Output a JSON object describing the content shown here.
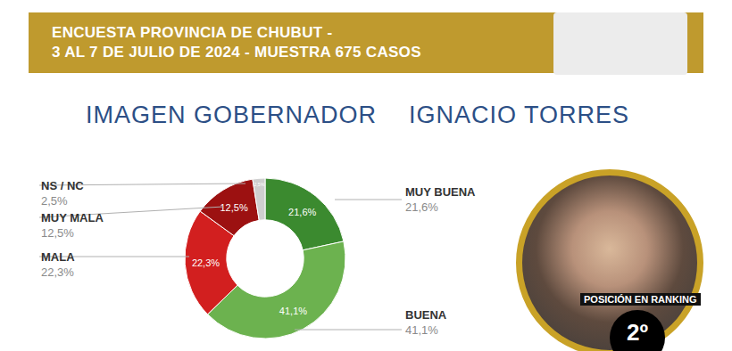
{
  "header": {
    "lines": [
      "ENCUESTA PROVINCIA DE CHUBUT -",
      "3 AL 7 DE JULIO DE 2024 - MUESTRA 675 CASOS"
    ]
  },
  "chart_data": {
    "type": "pie",
    "title": "IMAGEN GOBERNADOR",
    "subtitle": "IGNACIO TORRES",
    "categories": [
      "MUY BUENA",
      "BUENA",
      "MALA",
      "MUY MALA",
      "NS / NC"
    ],
    "values": [
      21.6,
      41.1,
      22.3,
      12.5,
      2.5
    ],
    "value_labels": [
      "21,6%",
      "41,1%",
      "22,3%",
      "12,5%",
      "2,5%"
    ],
    "colors": [
      "#3b8a2f",
      "#6cb24f",
      "#d21f1f",
      "#9c1111",
      "#cfcfcf"
    ],
    "data_labels": true,
    "annotations": [
      "POSICIÓN EN RANKING",
      "2º"
    ]
  }
}
